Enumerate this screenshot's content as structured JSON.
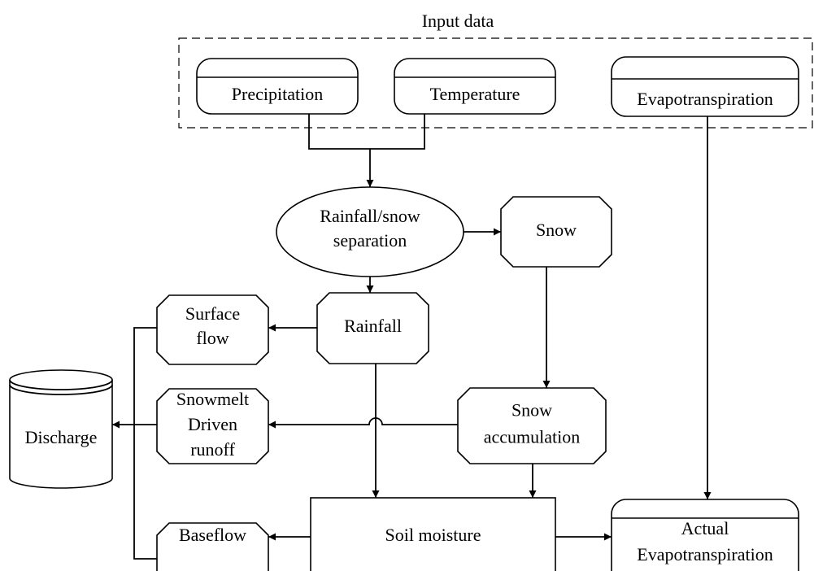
{
  "header": {
    "title": "Input data"
  },
  "nodes": [
    {
      "lines": [
        "Precipitation"
      ]
    },
    {
      "lines": [
        "Temperature"
      ]
    },
    {
      "lines": [
        "Evapotranspiration"
      ]
    },
    {
      "lines": [
        "Rainfall/snow",
        "separation"
      ]
    },
    {
      "lines": [
        "Snow"
      ]
    },
    {
      "lines": [
        "Rainfall"
      ]
    },
    {
      "lines": [
        "Surface",
        "flow"
      ]
    },
    {
      "lines": [
        "Snow",
        "accumulation"
      ]
    },
    {
      "lines": [
        "Snowmelt",
        "Driven",
        "runoff"
      ]
    },
    {
      "lines": [
        "Discharge"
      ]
    },
    {
      "lines": [
        "Soil moisture"
      ]
    },
    {
      "lines": [
        "Baseflow"
      ]
    },
    {
      "lines": [
        "Actual",
        "Evapotranspiration"
      ]
    }
  ]
}
